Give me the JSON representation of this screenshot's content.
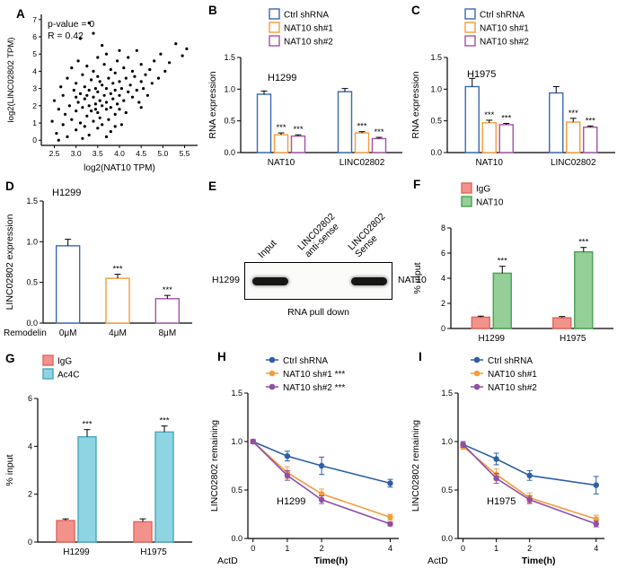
{
  "figure": {
    "panel_labels": {
      "a": "A",
      "b": "B",
      "c": "C",
      "d": "D",
      "e": "E",
      "f": "F",
      "g": "G",
      "h": "H",
      "i": "I"
    }
  },
  "colors": {
    "blue": "#3a68b2",
    "orange": "#f59c3c",
    "purple": "#a152a8",
    "line_blue": "#2e5fa7",
    "line_purple": "#8f4fa8",
    "salmon_fill": "#f2928b",
    "salmon_edge": "#e0655c",
    "green_fill": "#93cf96",
    "green_edge": "#4d9e55",
    "cyan_fill": "#8fd4e2",
    "cyan_edge": "#4aa6c0",
    "black": "#000000"
  },
  "chart_data": [
    {
      "panel": "A",
      "type": "scatter",
      "annotations": [
        "p-value = 0",
        "R = 0.42"
      ],
      "xlabel": "log2(NAT10 TPM)",
      "ylabel": "log2(LINC02802 TPM)",
      "xlim": [
        2.2,
        5.8
      ],
      "ylim": [
        -0.3,
        7.3
      ],
      "xticks": [
        "2.5",
        "3.0",
        "3.5",
        "4.0",
        "4.5",
        "5.0",
        "5.5"
      ],
      "yticks": [
        "0",
        "1",
        "2",
        "3",
        "4",
        "5",
        "6",
        "7"
      ],
      "grid": false,
      "points": [
        [
          2.45,
          1.1
        ],
        [
          2.5,
          2.3
        ],
        [
          2.55,
          0.4
        ],
        [
          2.6,
          1.8
        ],
        [
          2.65,
          3.1
        ],
        [
          2.7,
          0.9
        ],
        [
          2.7,
          2.6
        ],
        [
          2.75,
          1.5
        ],
        [
          2.8,
          3.6
        ],
        [
          2.8,
          0.2
        ],
        [
          2.85,
          2.0
        ],
        [
          2.9,
          1.2
        ],
        [
          2.9,
          4.2
        ],
        [
          2.95,
          2.9
        ],
        [
          3.0,
          1.7
        ],
        [
          3.0,
          0.6
        ],
        [
          3.0,
          3.3
        ],
        [
          3.05,
          2.2
        ],
        [
          3.05,
          4.6
        ],
        [
          3.1,
          1.0
        ],
        [
          3.1,
          2.7
        ],
        [
          3.1,
          5.9
        ],
        [
          3.15,
          1.9
        ],
        [
          3.15,
          3.8
        ],
        [
          3.2,
          0.8
        ],
        [
          3.2,
          2.4
        ],
        [
          3.2,
          3.1
        ],
        [
          3.25,
          1.4
        ],
        [
          3.25,
          4.3
        ],
        [
          3.3,
          2.0
        ],
        [
          3.3,
          0.3
        ],
        [
          3.3,
          2.9
        ],
        [
          3.3,
          6.8
        ],
        [
          3.35,
          1.7
        ],
        [
          3.35,
          3.5
        ],
        [
          3.4,
          2.5
        ],
        [
          3.4,
          1.1
        ],
        [
          3.4,
          4.0
        ],
        [
          3.4,
          6.2
        ],
        [
          3.45,
          2.1
        ],
        [
          3.45,
          3.0
        ],
        [
          3.5,
          1.6
        ],
        [
          3.5,
          2.8
        ],
        [
          3.5,
          0.7
        ],
        [
          3.5,
          3.7
        ],
        [
          3.5,
          4.8
        ],
        [
          3.55,
          2.3
        ],
        [
          3.55,
          1.3
        ],
        [
          3.6,
          3.2
        ],
        [
          3.6,
          2.0
        ],
        [
          3.6,
          5.5
        ],
        [
          3.6,
          0.9
        ],
        [
          3.65,
          2.6
        ],
        [
          3.65,
          4.4
        ],
        [
          3.7,
          1.8
        ],
        [
          3.7,
          3.0
        ],
        [
          3.7,
          2.2
        ],
        [
          3.7,
          5.0
        ],
        [
          3.75,
          3.6
        ],
        [
          3.75,
          1.2
        ],
        [
          3.8,
          2.7
        ],
        [
          3.8,
          4.1
        ],
        [
          3.8,
          1.9
        ],
        [
          3.8,
          0.5
        ],
        [
          3.85,
          3.3
        ],
        [
          3.85,
          2.4
        ],
        [
          3.9,
          1.5
        ],
        [
          3.9,
          3.9
        ],
        [
          3.9,
          2.9
        ],
        [
          3.95,
          4.6
        ],
        [
          3.95,
          2.1
        ],
        [
          4.0,
          3.4
        ],
        [
          4.0,
          1.8
        ],
        [
          4.0,
          2.6
        ],
        [
          4.0,
          5.2
        ],
        [
          4.05,
          3.0
        ],
        [
          4.1,
          2.3
        ],
        [
          4.1,
          4.2
        ],
        [
          4.15,
          3.6
        ],
        [
          4.15,
          1.6
        ],
        [
          4.2,
          2.8
        ],
        [
          4.2,
          4.8
        ],
        [
          4.25,
          3.2
        ],
        [
          4.3,
          2.5
        ],
        [
          4.3,
          4.0
        ],
        [
          4.35,
          3.7
        ],
        [
          4.4,
          2.9
        ],
        [
          4.4,
          5.2
        ],
        [
          4.45,
          2.2
        ],
        [
          4.5,
          3.4
        ],
        [
          4.5,
          4.4
        ],
        [
          4.55,
          3.0
        ],
        [
          4.6,
          3.8
        ],
        [
          4.65,
          2.6
        ],
        [
          4.7,
          4.1
        ],
        [
          4.75,
          3.3
        ],
        [
          4.8,
          4.6
        ],
        [
          4.9,
          3.6
        ],
        [
          4.95,
          5.0
        ],
        [
          5.05,
          4.0
        ],
        [
          5.15,
          4.5
        ],
        [
          5.3,
          5.6
        ],
        [
          5.45,
          4.9
        ],
        [
          5.55,
          5.3
        ],
        [
          2.6,
          0.0
        ],
        [
          3.15,
          0.1
        ],
        [
          3.7,
          0.2
        ],
        [
          4.05,
          0.9
        ],
        [
          3.0,
          2.5
        ],
        [
          3.55,
          3.4
        ],
        [
          3.9,
          0.8
        ],
        [
          4.5,
          1.9
        ],
        [
          3.25,
          2.6
        ],
        [
          3.45,
          1.8
        ]
      ]
    },
    {
      "panel": "B",
      "type": "grouped_bar",
      "title": "H1299",
      "bar_style": "open",
      "ylabel": "RNA expression",
      "ylim": [
        0,
        1.5
      ],
      "yticks": [
        "0.0",
        "0.5",
        "1.0",
        "1.5"
      ],
      "categories": [
        "NAT10",
        "LINC02802"
      ],
      "series": [
        {
          "name": "Ctrl shRNA",
          "color": "#3a68b2",
          "values": [
            0.92,
            0.96
          ],
          "errors": [
            0.05,
            0.05
          ],
          "sig": [
            "",
            ""
          ]
        },
        {
          "name": "NAT10 sh#1",
          "color": "#f59c3c",
          "values": [
            0.28,
            0.31
          ],
          "errors": [
            0.03,
            0.02
          ],
          "sig": [
            "***",
            "***"
          ]
        },
        {
          "name": "NAT10 sh#2",
          "color": "#a152a8",
          "values": [
            0.26,
            0.22
          ],
          "errors": [
            0.02,
            0.02
          ],
          "sig": [
            "***",
            "***"
          ]
        }
      ]
    },
    {
      "panel": "C",
      "type": "grouped_bar",
      "title": "H1975",
      "bar_style": "open",
      "ylabel": "RNA expression",
      "ylim": [
        0,
        1.5
      ],
      "yticks": [
        "0.0",
        "0.5",
        "1.0",
        "1.5"
      ],
      "categories": [
        "NAT10",
        "LINC02802"
      ],
      "series": [
        {
          "name": "Ctrl shRNA",
          "color": "#3a68b2",
          "values": [
            1.04,
            0.94
          ],
          "errors": [
            0.13,
            0.1
          ],
          "sig": [
            "",
            ""
          ]
        },
        {
          "name": "NAT10 sh#1",
          "color": "#f59c3c",
          "values": [
            0.47,
            0.48
          ],
          "errors": [
            0.04,
            0.06
          ],
          "sig": [
            "***",
            "***"
          ]
        },
        {
          "name": "NAT10 sh#2",
          "color": "#a152a8",
          "values": [
            0.44,
            0.4
          ],
          "errors": [
            0.02,
            0.02
          ],
          "sig": [
            "***",
            "***"
          ]
        }
      ]
    },
    {
      "panel": "D",
      "type": "grouped_bar",
      "title": "H1299",
      "bar_style": "open",
      "ylabel": "LINC02802 expression",
      "ylim": [
        0,
        1.5
      ],
      "yticks": [
        "0.0",
        "0.5",
        "1.0",
        "1.5"
      ],
      "categories": [
        "0μM",
        "4μM",
        "8μM"
      ],
      "axis_prefix": "Remodelin",
      "series": [
        {
          "name": "",
          "colors": [
            "#3a68b2",
            "#f59c3c",
            "#a152a8"
          ],
          "values": [
            0.95,
            0.55,
            0.3
          ],
          "errors": [
            0.08,
            0.05,
            0.04
          ],
          "sig": [
            "",
            "***",
            "***"
          ]
        }
      ]
    },
    {
      "panel": "E",
      "type": "blot",
      "lanes": [
        "Input",
        "LINC02802\nanti-sense",
        "LINC02802\nSense"
      ],
      "row_label": "H1299",
      "band_label": "NAT10",
      "caption": "RNA pull down",
      "bands": [
        1,
        0,
        1
      ]
    },
    {
      "panel": "F",
      "type": "grouped_bar",
      "bar_style": "filled",
      "ylabel": "% input",
      "ylim": [
        0,
        8
      ],
      "yticks": [
        "0",
        "2",
        "4",
        "6",
        "8"
      ],
      "categories": [
        "H1299",
        "H1975"
      ],
      "series": [
        {
          "name": "IgG",
          "color": "#e0655c",
          "fill": "#f2928b",
          "values": [
            0.9,
            0.85
          ],
          "errors": [
            0.08,
            0.1
          ],
          "sig": [
            "",
            ""
          ]
        },
        {
          "name": "NAT10",
          "color": "#4d9e55",
          "fill": "#93cf96",
          "values": [
            4.4,
            6.1
          ],
          "errors": [
            0.55,
            0.35
          ],
          "sig": [
            "***",
            "***"
          ]
        }
      ]
    },
    {
      "panel": "G",
      "type": "grouped_bar",
      "bar_style": "filled",
      "ylabel": "% input",
      "ylim": [
        0,
        6
      ],
      "yticks": [
        "0",
        "2",
        "4",
        "6"
      ],
      "categories": [
        "H1299",
        "H1975"
      ],
      "series": [
        {
          "name": "IgG",
          "color": "#e0655c",
          "fill": "#f2928b",
          "values": [
            0.9,
            0.85
          ],
          "errors": [
            0.07,
            0.12
          ],
          "sig": [
            "",
            ""
          ]
        },
        {
          "name": "Ac4C",
          "color": "#4aa6c0",
          "fill": "#8fd4e2",
          "values": [
            4.4,
            4.6
          ],
          "errors": [
            0.3,
            0.25
          ],
          "sig": [
            "***",
            "***"
          ]
        }
      ]
    },
    {
      "panel": "H",
      "type": "line",
      "title": "H1299",
      "ylabel": "LINC02802 remaining",
      "xlabel": "Time(h)",
      "axis_prefix": "ActD",
      "ylim": [
        0,
        1.5
      ],
      "yticks": [
        "0.0",
        "0.5",
        "1.0",
        "1.5"
      ],
      "xlim": [
        -0.15,
        4.25
      ],
      "xticks": [
        "0",
        "1",
        "2",
        "4"
      ],
      "x": [
        0,
        1,
        2,
        4
      ],
      "series": [
        {
          "name": "Ctrl shRNA",
          "color": "#2e5fa7",
          "values": [
            1.0,
            0.85,
            0.75,
            0.57
          ],
          "errors": [
            0.02,
            0.05,
            0.09,
            0.04
          ]
        },
        {
          "name": "NAT10 sh#1 ***",
          "color": "#f59c3c",
          "values": [
            1.0,
            0.68,
            0.46,
            0.22
          ],
          "errors": [
            0.02,
            0.06,
            0.05,
            0.03
          ]
        },
        {
          "name": "NAT10 sh#2 ***",
          "color": "#8f4fa8",
          "values": [
            1.0,
            0.65,
            0.4,
            0.15
          ],
          "errors": [
            0.02,
            0.05,
            0.04,
            0.02
          ]
        }
      ]
    },
    {
      "panel": "I",
      "type": "line",
      "title": "H1975",
      "ylabel": "LINC02802 remaining",
      "xlabel": "Time(h)",
      "axis_prefix": "ActD",
      "ylim": [
        0,
        1.5
      ],
      "yticks": [
        "0.0",
        "0.5",
        "1.0",
        "1.5"
      ],
      "xlim": [
        -0.15,
        4.25
      ],
      "xticks": [
        "0",
        "1",
        "2",
        "4"
      ],
      "x": [
        0,
        1,
        2,
        4
      ],
      "series": [
        {
          "name": "Ctrl shRNA",
          "color": "#2e5fa7",
          "values": [
            0.97,
            0.82,
            0.65,
            0.55
          ],
          "errors": [
            0.03,
            0.06,
            0.05,
            0.09
          ]
        },
        {
          "name": "NAT10 sh#1",
          "color": "#f59c3c",
          "values": [
            0.95,
            0.66,
            0.42,
            0.2
          ],
          "errors": [
            0.03,
            0.06,
            0.05,
            0.04
          ]
        },
        {
          "name": "NAT10 sh#2",
          "color": "#8f4fa8",
          "values": [
            0.97,
            0.62,
            0.4,
            0.15
          ],
          "errors": [
            0.03,
            0.05,
            0.04,
            0.03
          ]
        }
      ]
    }
  ]
}
